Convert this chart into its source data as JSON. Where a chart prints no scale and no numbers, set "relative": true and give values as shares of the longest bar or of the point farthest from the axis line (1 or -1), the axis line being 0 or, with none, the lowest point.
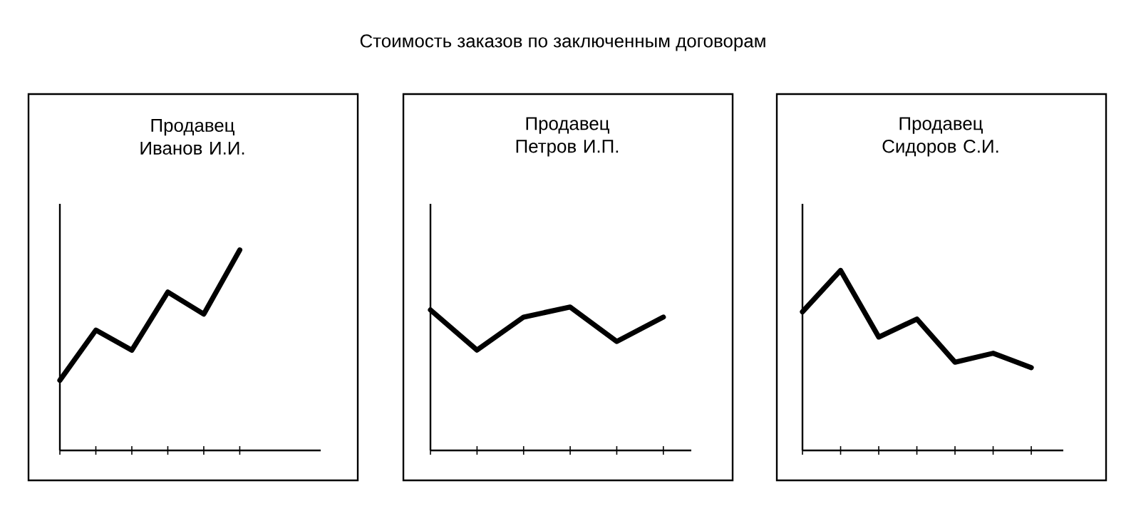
{
  "chart_data": [
    {
      "type": "other",
      "title": "Стоимость заказов по заключенным договорам"
    },
    {
      "type": "line",
      "title": "Продавец Иванов И.И.",
      "relative": true,
      "tick_labels": false,
      "marker": "none",
      "line_style": "solid",
      "categories": [
        null,
        null,
        null,
        null,
        null,
        null
      ],
      "series": [
        {
          "color": "#000000",
          "values": [
            0.35,
            0.6,
            0.5,
            0.79,
            0.68,
            1
          ]
        }
      ]
    },
    {
      "type": "line",
      "title": "Продавец Петров И.П.",
      "relative": true,
      "tick_labels": false,
      "marker": "none",
      "line_style": "solid",
      "categories": [
        null,
        null,
        null,
        null,
        null,
        null
      ],
      "series": [
        {
          "color": "#000000",
          "values": [
            0.98,
            0.7,
            0.93,
            1,
            0.76,
            0.93
          ]
        }
      ]
    },
    {
      "type": "line",
      "title": "Продавец Сидоров С.И.",
      "relative": true,
      "tick_labels": false,
      "marker": "none",
      "line_style": "solid",
      "categories": [
        null,
        null,
        null,
        null,
        null,
        null,
        null
      ],
      "series": [
        {
          "color": "#000000",
          "values": [
            0.77,
            1,
            0.63,
            0.73,
            0.49,
            0.54,
            0.46
          ]
        }
      ]
    }
  ]
}
